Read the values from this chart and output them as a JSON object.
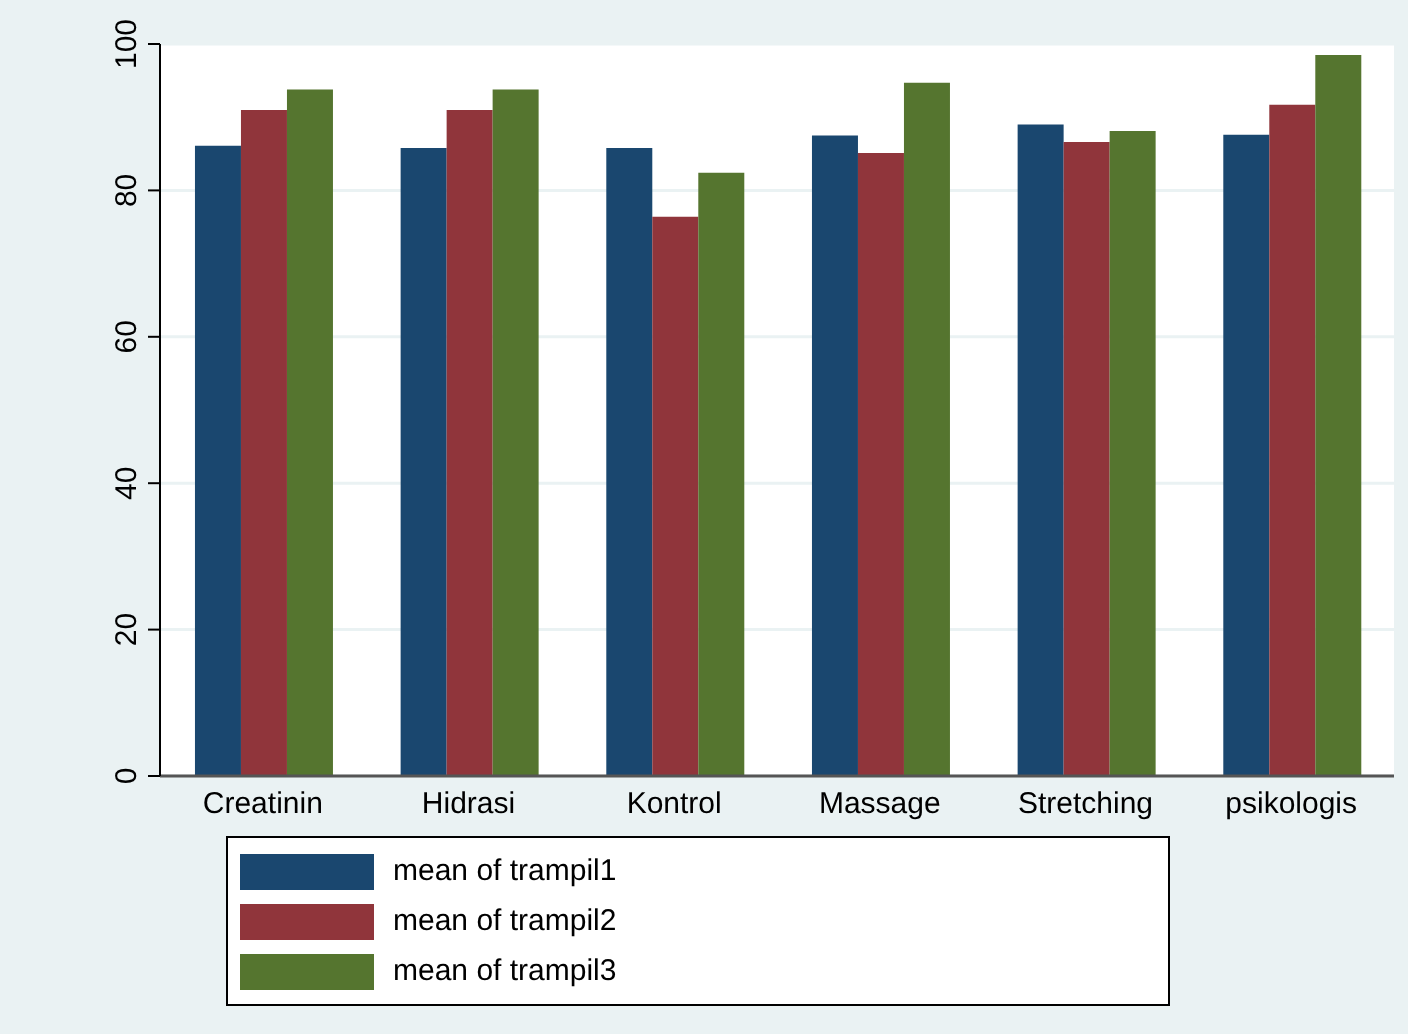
{
  "chart_data": {
    "type": "bar",
    "categories": [
      "Creatinin",
      "Hidrasi",
      "Kontrol",
      "Massage",
      "Stretching",
      "psikologis"
    ],
    "series": [
      {
        "name": "mean of trampil1",
        "color": "#1a476f",
        "values": [
          86.1,
          85.8,
          85.8,
          87.5,
          89.0,
          87.6
        ]
      },
      {
        "name": "mean of trampil2",
        "color": "#90353b",
        "values": [
          91.0,
          91.0,
          76.4,
          85.1,
          86.6,
          91.7
        ]
      },
      {
        "name": "mean of trampil3",
        "color": "#55752f",
        "values": [
          93.8,
          93.8,
          82.4,
          94.7,
          88.1,
          98.5
        ]
      }
    ],
    "ylim": [
      0,
      100
    ],
    "yticks": [
      0,
      20,
      40,
      60,
      80,
      100
    ],
    "grid": "y",
    "legend": "bottom"
  }
}
